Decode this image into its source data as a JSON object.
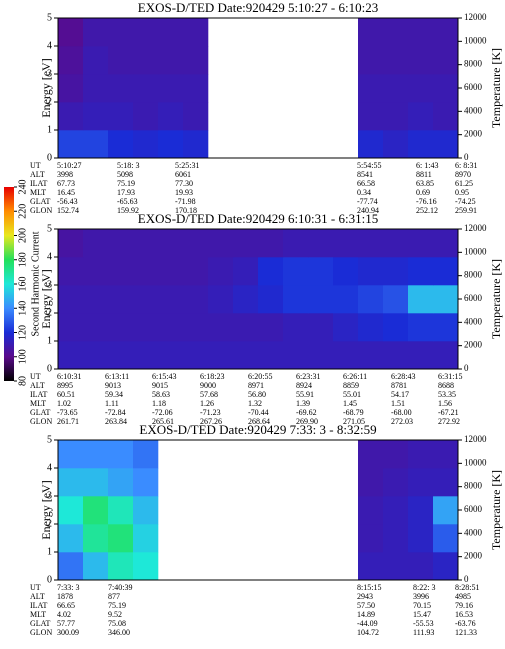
{
  "colorbar": {
    "label": "Second Harmonic Current",
    "lim": [
      80,
      240
    ],
    "ticks": [
      80,
      100,
      120,
      140,
      160,
      180,
      200,
      220,
      240
    ],
    "colors": [
      "#000000",
      "#5a0a8c",
      "#1a2cd6",
      "#3a8cff",
      "#1ee8d8",
      "#22e05a",
      "#e8e81e",
      "#ff8c00",
      "#e80000"
    ]
  },
  "chart_data": [
    {
      "type": "heatmap",
      "title": "EXOS-D/TED   Date:920429   5:10:27 - 6:10:23",
      "ylabel": "Energy [eV]",
      "y2label": "Temperature [K]",
      "ylim": [
        0,
        5
      ],
      "yticks": [
        0,
        1,
        2,
        3,
        4,
        5
      ],
      "y2lim": [
        0,
        12000
      ],
      "y2ticks": [
        0,
        2000,
        4000,
        6000,
        8000,
        10000,
        12000
      ],
      "z": [
        [
          125,
          125,
          120,
          118,
          120,
          118,
          null,
          null,
          null,
          null,
          null,
          null,
          118,
          115,
          118,
          118
        ],
        [
          110,
          112,
          112,
          110,
          112,
          110,
          null,
          null,
          null,
          null,
          null,
          null,
          110,
          110,
          112,
          110
        ],
        [
          106,
          110,
          110,
          110,
          110,
          110,
          null,
          null,
          null,
          null,
          null,
          null,
          110,
          110,
          110,
          110
        ],
        [
          104,
          110,
          108,
          108,
          108,
          108,
          null,
          null,
          null,
          null,
          null,
          null,
          108,
          108,
          108,
          108
        ],
        [
          102,
          108,
          108,
          108,
          108,
          108,
          null,
          null,
          null,
          null,
          null,
          null,
          108,
          108,
          108,
          108
        ]
      ],
      "table": {
        "row_labels": [
          "UT",
          "ALT",
          "ILAT",
          "MLT",
          "GLAT",
          "GLON"
        ],
        "rows": [
          [
            "5:10:27",
            "5:18: 3",
            "5:25:31",
            "5:54:55",
            "6: 1:43",
            "6: 8:31"
          ],
          [
            "3998",
            "5098",
            "6061",
            "8541",
            "8811",
            "8970"
          ],
          [
            "67.73",
            "75.19",
            "77.30",
            "66.58",
            "63.85",
            "61.25"
          ],
          [
            "16.45",
            "17.93",
            "19.93",
            "0.34",
            "0.69",
            "0.95"
          ],
          [
            "-56.43",
            "-65.63",
            "-71.98",
            "-77.74",
            "-76.16",
            "-74.25"
          ],
          [
            "152.74",
            "159.92",
            "170.18",
            "240.94",
            "252.12",
            "259.91"
          ]
        ]
      }
    },
    {
      "type": "heatmap",
      "title": "EXOS-D/TED   Date:920429   6:10:31 - 6:31:15",
      "ylabel": "Energy [eV]",
      "y2label": "Temperature [K]",
      "ylim": [
        0,
        5
      ],
      "yticks": [
        0,
        1,
        2,
        3,
        4,
        5
      ],
      "y2lim": [
        0,
        12000
      ],
      "y2ticks": [
        0,
        2000,
        4000,
        6000,
        8000,
        10000,
        12000
      ],
      "z": [
        [
          112,
          112,
          112,
          112,
          112,
          112,
          112,
          112,
          112,
          112,
          112,
          112,
          112,
          112,
          112,
          112
        ],
        [
          110,
          110,
          110,
          110,
          110,
          110,
          110,
          110,
          110,
          112,
          112,
          115,
          118,
          120,
          122,
          122
        ],
        [
          110,
          110,
          110,
          110,
          110,
          110,
          112,
          115,
          118,
          122,
          122,
          122,
          125,
          128,
          150,
          150
        ],
        [
          108,
          108,
          108,
          108,
          108,
          108,
          110,
          112,
          120,
          122,
          122,
          120,
          118,
          118,
          120,
          120
        ],
        [
          106,
          108,
          108,
          108,
          108,
          108,
          108,
          108,
          108,
          110,
          110,
          110,
          110,
          110,
          110,
          110
        ]
      ],
      "table": {
        "row_labels": [
          "UT",
          "ALT",
          "ILAT",
          "MLT",
          "GLAT",
          "GLON"
        ],
        "rows": [
          [
            "6:10:31",
            "6:13:11",
            "6:15:43",
            "6:18:23",
            "6:20:55",
            "6:23:31",
            "6:26:11",
            "6:28:43",
            "6:31:15"
          ],
          [
            "8995",
            "9013",
            "9015",
            "9000",
            "8971",
            "8924",
            "8859",
            "8781",
            "8688"
          ],
          [
            "60.51",
            "59.34",
            "58.63",
            "57.68",
            "56.80",
            "55.91",
            "55.01",
            "54.17",
            "53.35"
          ],
          [
            "1.02",
            "1.11",
            "1.18",
            "1.26",
            "1.32",
            "1.39",
            "1.45",
            "1.51",
            "1.56"
          ],
          [
            "-73.65",
            "-72.84",
            "-72.06",
            "-71.23",
            "-70.44",
            "-69.62",
            "-68.79",
            "-68.00",
            "-67.21"
          ],
          [
            "261.71",
            "263.84",
            "265.61",
            "267.26",
            "268.64",
            "269.90",
            "271.05",
            "272.03",
            "272.92"
          ]
        ]
      }
    },
    {
      "type": "heatmap",
      "title": "EXOS-D/TED   Date:920429   7:33: 3 - 8:32:59",
      "ylabel": "Energy [eV]",
      "y2label": "Temperature [K]",
      "ylim": [
        0,
        5
      ],
      "yticks": [
        0,
        1,
        2,
        3,
        4,
        5
      ],
      "y2lim": [
        0,
        12000
      ],
      "y2ticks": [
        0,
        2000,
        4000,
        6000,
        8000,
        10000,
        12000
      ],
      "z": [
        [
          135,
          150,
          165,
          160,
          null,
          null,
          null,
          null,
          null,
          null,
          null,
          null,
          112,
          112,
          112,
          115
        ],
        [
          150,
          170,
          175,
          155,
          null,
          null,
          null,
          null,
          null,
          null,
          null,
          null,
          110,
          112,
          115,
          130
        ],
        [
          160,
          175,
          165,
          150,
          null,
          null,
          null,
          null,
          null,
          null,
          null,
          null,
          110,
          112,
          115,
          145
        ],
        [
          150,
          150,
          145,
          140,
          null,
          null,
          null,
          null,
          null,
          null,
          null,
          null,
          108,
          110,
          112,
          112
        ],
        [
          140,
          140,
          140,
          135,
          null,
          null,
          null,
          null,
          null,
          null,
          null,
          null,
          108,
          108,
          110,
          110
        ]
      ],
      "table": {
        "row_labels": [
          "UT",
          "ALT",
          "ILAT",
          "MLT",
          "GLAT",
          "GLON"
        ],
        "rows": [
          [
            "7:33: 3",
            "7:40:39",
            "8:15:15",
            "8:22: 3",
            "8:28:51"
          ],
          [
            "1878",
            "877",
            "2943",
            "3996",
            "4985"
          ],
          [
            "66.65",
            "75.19",
            "57.50",
            "70.15",
            "79.16"
          ],
          [
            "4.02",
            "9.52",
            "14.89",
            "15.47",
            "16.53"
          ],
          [
            "57.77",
            "75.08",
            "-44.09",
            "-55.53",
            "-63.76"
          ],
          [
            "300.09",
            "346.00",
            "104.72",
            "111.93",
            "121.33"
          ]
        ]
      }
    }
  ]
}
